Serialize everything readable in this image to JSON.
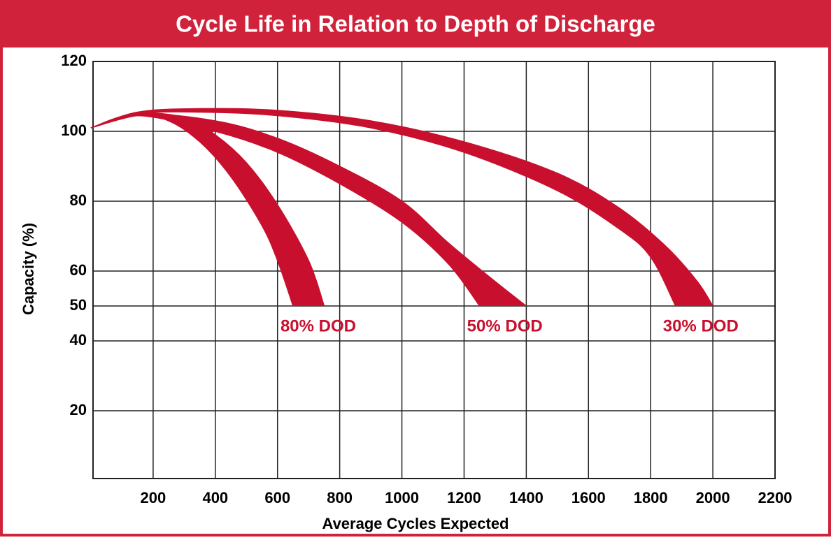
{
  "chart_data": {
    "type": "band",
    "title": "Cycle Life in Relation to Depth of Discharge",
    "x_label": "Average Cycles Expected",
    "y_label": "Capacity (%)",
    "xlim": [
      0,
      2200
    ],
    "ylim": [
      0,
      120
    ],
    "xticks": [
      200,
      400,
      600,
      800,
      1000,
      1200,
      1400,
      1600,
      1800,
      2000,
      2200
    ],
    "yticks": [
      20,
      40,
      50,
      60,
      80,
      100,
      120
    ],
    "grid": true,
    "series": [
      {
        "name": "80% DOD",
        "color": "#c8102e",
        "edges": [
          {
            "x": [
              0,
              150,
              300,
              400,
              500,
              600,
              700,
              750
            ],
            "values": [
              101,
              105,
              104,
              99,
              91,
              79,
              63,
              50
            ]
          },
          {
            "x": [
              0,
              150,
              250,
              350,
              450,
              550,
              600,
              650
            ],
            "values": [
              101,
              104.5,
              103,
              97,
              87,
              73,
              63,
              50
            ]
          }
        ]
      },
      {
        "name": "50% DOD",
        "color": "#c8102e",
        "edges": [
          {
            "x": [
              0,
              150,
              400,
              600,
              800,
              1000,
              1150,
              1300,
              1400
            ],
            "values": [
              101,
              105,
              103,
              98,
              90,
              80,
              68,
              57,
              50
            ]
          },
          {
            "x": [
              0,
              150,
              400,
              600,
              800,
              1000,
              1150,
              1250
            ],
            "values": [
              101,
              104.5,
              100,
              94,
              85,
              74,
              62,
              50
            ]
          }
        ]
      },
      {
        "name": "30% DOD",
        "color": "#c8102e",
        "edges": [
          {
            "x": [
              0,
              150,
              350,
              600,
              900,
              1200,
              1500,
              1700,
              1850,
              1950,
              2000
            ],
            "values": [
              101,
              105.5,
              106.5,
              106,
              103,
              97,
              88,
              78,
              67,
              57,
              50
            ]
          },
          {
            "x": [
              0,
              150,
              350,
              600,
              900,
              1200,
              1500,
              1700,
              1800,
              1880
            ],
            "values": [
              101,
              105,
              105.5,
              104.5,
              101,
              94,
              83,
              72,
              64,
              50
            ]
          }
        ]
      }
    ]
  }
}
